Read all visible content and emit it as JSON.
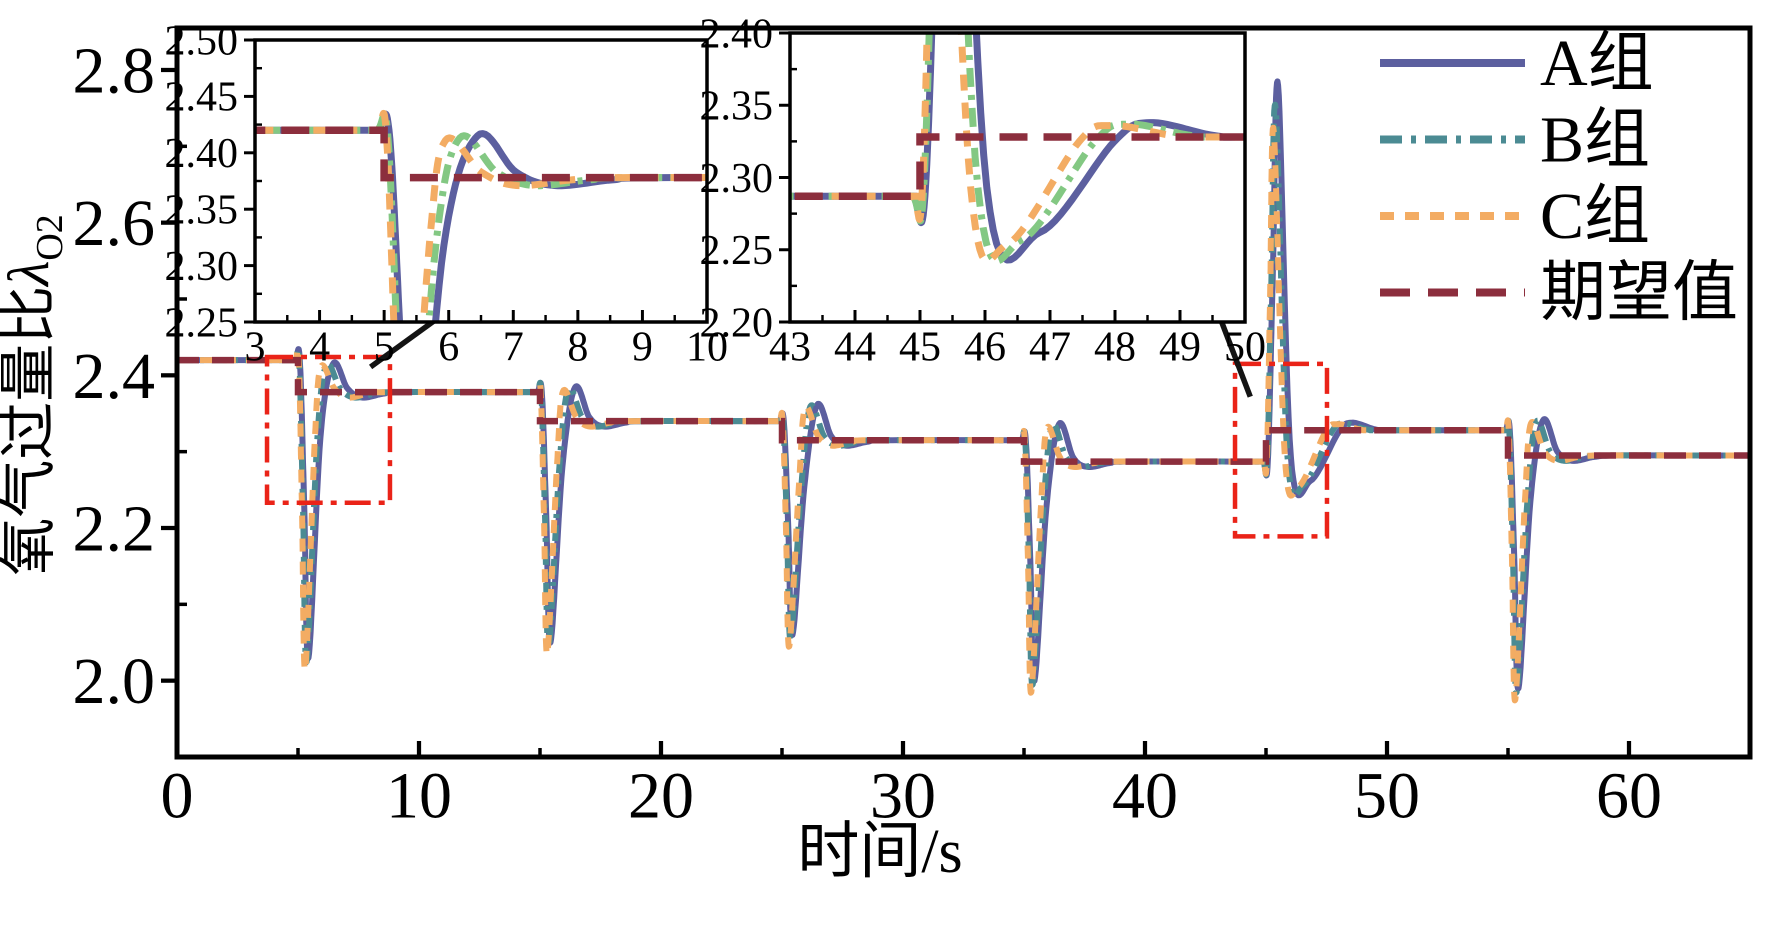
{
  "figure": {
    "x_axis_title": "时间/s",
    "y_axis_title_prefix": "氧气过量比",
    "y_axis_title_lambda": "λ",
    "y_axis_title_sub": "O2"
  },
  "legend": {
    "items": [
      {
        "label": "A组",
        "color": "#5c5f9f",
        "style": "solid"
      },
      {
        "label": "B组",
        "color": "#4b8b93",
        "style": "dashdot"
      },
      {
        "label": "C组",
        "color": "#f3ac63",
        "style": "dash"
      },
      {
        "label": "期望值",
        "color": "#8c2e3d",
        "style": "longdash"
      }
    ]
  },
  "chart_data": {
    "type": "line",
    "title": "",
    "xlabel": "时间/s",
    "ylabel": "氧气过量比λO2",
    "x_range": [
      0,
      65
    ],
    "y_range": [
      1.9,
      2.855
    ],
    "x_major_ticks": [
      0,
      10,
      20,
      30,
      40,
      50,
      60
    ],
    "x_minor_ticks": [
      5,
      15,
      25,
      35,
      45,
      55
    ],
    "y_major_ticks": [
      2.0,
      2.2,
      2.4,
      2.6,
      2.8
    ],
    "y_minor_ticks": [
      2.1,
      2.3,
      2.5,
      2.7
    ],
    "grid": false,
    "legend_position": "top-right-inside",
    "t_end": 65,
    "expected": {
      "label": "期望值",
      "color": "#8c2e3d"
    },
    "expected_steps": [
      {
        "t": 0,
        "v": 2.42
      },
      {
        "t": 5,
        "v": 2.378
      },
      {
        "t": 15,
        "v": 2.34
      },
      {
        "t": 25,
        "v": 2.315
      },
      {
        "t": 35,
        "v": 2.287
      },
      {
        "t": 45,
        "v": 2.328
      },
      {
        "t": 55,
        "v": 2.295
      }
    ],
    "series": [
      {
        "key": "A",
        "label": "A组",
        "color": "#5c5f9f",
        "line_style": "solid",
        "lag": 0.45
      },
      {
        "key": "B",
        "label": "B组",
        "color": "#4b8b93",
        "line_style": "dash-dot",
        "lag": 0.2
      },
      {
        "key": "C",
        "label": "C组",
        "color": "#f3ac63",
        "line_style": "dashed",
        "lag": 0
      }
    ],
    "events": [
      {
        "t0": 5,
        "type": "down",
        "sp_prev": 2.42,
        "sp": 2.378,
        "extreme": {
          "A": 2.03,
          "B": 2.025,
          "C": 2.015
        },
        "rebound": {
          "A": 2.415,
          "B": 2.413,
          "C": 2.411
        }
      },
      {
        "t0": 15,
        "type": "down",
        "sp_prev": 2.378,
        "sp": 2.34,
        "extreme": {
          "A": 2.05,
          "B": 2.045,
          "C": 2.035
        },
        "rebound": {
          "A": 2.384,
          "B": 2.382,
          "C": 2.379
        }
      },
      {
        "t0": 25,
        "type": "down",
        "sp_prev": 2.34,
        "sp": 2.315,
        "extreme": {
          "A": 2.06,
          "B": 2.055,
          "C": 2.045
        },
        "rebound": {
          "A": 2.361,
          "B": 2.359,
          "C": 2.357
        }
      },
      {
        "t0": 35,
        "type": "down",
        "sp_prev": 2.315,
        "sp": 2.287,
        "extreme": {
          "A": 2.0,
          "B": 1.995,
          "C": 1.985
        },
        "rebound": {
          "A": 2.336,
          "B": 2.334,
          "C": 2.331
        }
      },
      {
        "t0": 45,
        "type": "up",
        "sp_prev": 2.287,
        "sp": 2.328,
        "extreme": {
          "A": 2.78,
          "B": 2.75,
          "C": 2.72
        },
        "rebound": {
          "A": 2.262,
          "B": 2.257,
          "C": 2.254
        },
        "second": {
          "A": 2.338,
          "B": 2.337,
          "C": 2.336
        }
      },
      {
        "t0": 55,
        "type": "down",
        "sp_prev": 2.328,
        "sp": 2.295,
        "extreme": {
          "A": 1.99,
          "B": 1.985,
          "C": 1.975
        },
        "rebound": {
          "A": 2.341,
          "B": 2.339,
          "C": 2.337
        }
      }
    ],
    "insets": [
      {
        "name": "left",
        "x_range": [
          3,
          10
        ],
        "y_range": [
          2.25,
          2.5
        ],
        "x_major_ticks": [
          3,
          4,
          5,
          6,
          7,
          8,
          9,
          10
        ],
        "y_major_ticks": [
          2.25,
          2.3,
          2.35,
          2.4,
          2.45,
          2.5
        ],
        "b_color": "#83c883"
      },
      {
        "name": "right",
        "x_range": [
          43,
          50
        ],
        "y_range": [
          2.2,
          2.4
        ],
        "x_major_ticks": [
          43,
          44,
          45,
          46,
          47,
          48,
          49,
          50
        ],
        "y_major_ticks": [
          2.2,
          2.25,
          2.3,
          2.35,
          2.4
        ],
        "b_color": "#83c883"
      }
    ],
    "zoom_rects": [
      {
        "t": [
          3.72,
          8.8
        ],
        "v": [
          2.233,
          2.424
        ]
      },
      {
        "t": [
          43.72,
          47.52
        ],
        "v": [
          2.189,
          2.415
        ]
      }
    ],
    "arrows": [
      {
        "from": [
          8.0,
          2.411
        ],
        "to": [
          12.7,
          2.519
        ]
      },
      {
        "from": [
          44.35,
          2.372
        ],
        "to": [
          42.2,
          2.55
        ]
      }
    ],
    "annotation_color": "#ea2318",
    "arrow_color": "#141414"
  }
}
